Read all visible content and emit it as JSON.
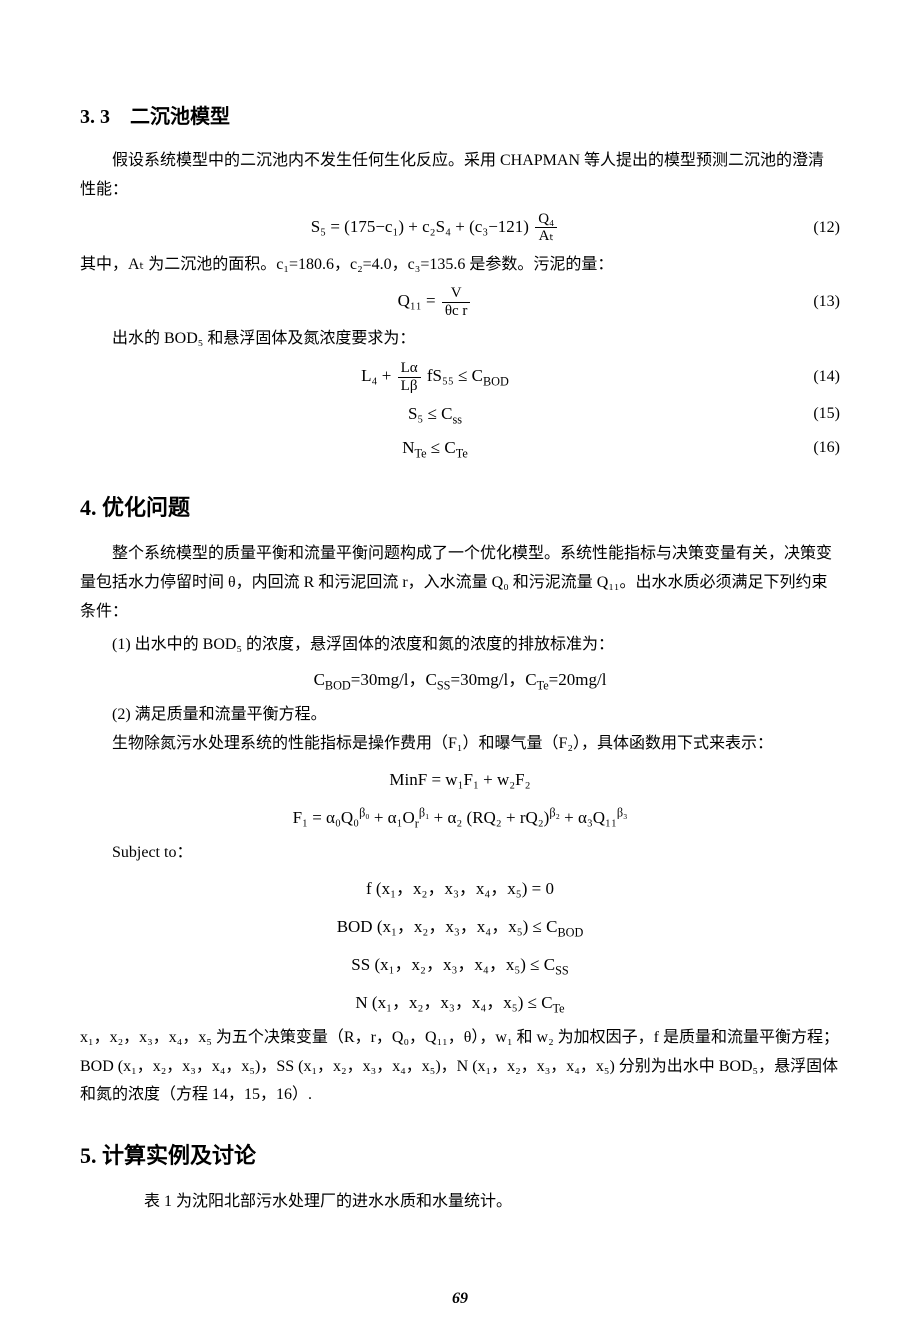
{
  "section33": {
    "heading": "3. 3　二沉池模型",
    "para1": "假设系统模型中的二沉池内不发生任何生化反应。采用 CHAPMAN 等人提出的模型预测二沉池的澄清性能：",
    "eq12": {
      "lhs": "S₅ =",
      "mid": "(175−c₁) + c₂S₄ + (c₃−121)",
      "frac_num": "Q₄",
      "frac_den": "Aₜ",
      "num": "(12)"
    },
    "para2_pre": "其中，Aₜ 为二沉池的面积。c₁=180.6，c₂=4.0，c₃=135.6 是参数。污泥的量：",
    "eq13": {
      "lhs": "Q₁₁ =",
      "frac_num": "V",
      "frac_den": "θc r",
      "num": "(13)"
    },
    "para3": "出水的 BOD₅ 和悬浮固体及氮浓度要求为：",
    "eq14": {
      "text_pre": "L₄ +",
      "frac_num": "Lα",
      "frac_den": "Lβ",
      "text_post": "fS₅₅ ≤ C",
      "sub": "BOD",
      "num": "(14)"
    },
    "eq15": {
      "text": "S₅ ≤ C",
      "sub": "ss",
      "num": "(15)"
    },
    "eq16": {
      "text": "N",
      "sub1": "Te",
      "mid": " ≤ C",
      "sub2": "Te",
      "num": "(16)"
    }
  },
  "section4": {
    "heading": "4. 优化问题",
    "para1": "整个系统模型的质量平衡和流量平衡问题构成了一个优化模型。系统性能指标与决策变量有关，决策变量包括水力停留时间 θ，内回流 R 和污泥回流 r，入水流量 Q₀ 和污泥流量 Q₁₁。出水水质必须满足下列约束条件：",
    "item1": "(1) 出水中的 BOD₅ 的浓度，悬浮固体的浓度和氮的浓度的排放标准为：",
    "eqConc_pre": "C",
    "eqConc_bod": "BOD",
    "eqConc_30a": "=30mg/l，C",
    "eqConc_ss": "SS",
    "eqConc_30b": "=30mg/l，C",
    "eqConc_te": "Te",
    "eqConc_20": "=20mg/l",
    "item2": "(2) 满足质量和流量平衡方程。",
    "para2": "生物除氮污水处理系统的性能指标是操作费用（F₁）和曝气量（F₂），具体函数用下式来表示：",
    "eqMin": "MinF = w₁F₁ + w₂F₂",
    "eqF1_a": "F₁ = α₀Q₀",
    "eqF1_b0": "β₀",
    "eqF1_c": " + α₁O",
    "eqF1_rb1": "β₁",
    "eqF1_d": " + α₂ (RQ₂ + rQ₂)",
    "eqF1_b2": "β₂",
    "eqF1_e": " + α₃Q₁₁",
    "eqF1_b3": "β₃",
    "subject": "Subject to：",
    "eqc1_a": "f (x₁，x₂，x₃，x₄，x₅) = 0",
    "eqc2_a": "BOD (x₁，x₂，x₃，x₄，x₅) ≤ C",
    "eqc2_b": "BOD",
    "eqc3_a": "SS (x₁，x₂，x₃，x₄，x₅) ≤ C",
    "eqc3_b": "SS",
    "eqc4_a": "N (x₁，x₂，x₃，x₄，x₅) ≤ C",
    "eqc4_b": "Te",
    "para3": "x₁，x₂，x₃，x₄，x₅ 为五个决策变量（R，r，Q₀，Q₁₁，θ），w₁ 和 w₂ 为加权因子，f 是质量和流量平衡方程；BOD (x₁，x₂，x₃，x₄，x₅)，SS (x₁，x₂，x₃，x₄，x₅)，N (x₁，x₂，x₃，x₄，x₅) 分别为出水中 BOD₅，悬浮固体和氮的浓度（方程 14，15，16）."
  },
  "section5": {
    "heading": "5. 计算实例及讨论",
    "para1": "表 1 为沈阳北部污水处理厂的进水水质和水量统计。"
  },
  "pagenum": "69"
}
